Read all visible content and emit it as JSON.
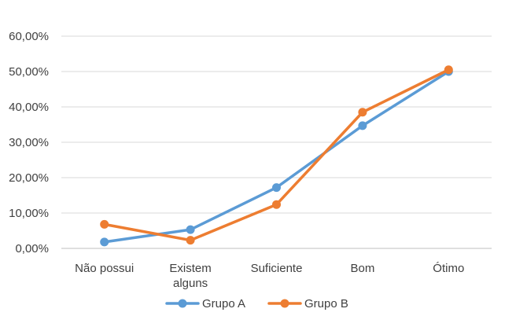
{
  "chart_data": {
    "type": "line",
    "title": "",
    "xlabel": "",
    "ylabel": "",
    "categories": [
      [
        "Não possui"
      ],
      [
        "Existem",
        "alguns"
      ],
      [
        "Suficiente"
      ],
      [
        "Bom"
      ],
      [
        "Ótimo"
      ]
    ],
    "y_ticks": [
      "0,00%",
      "10,00%",
      "20,00%",
      "30,00%",
      "40,00%",
      "50,00%",
      "60,00%"
    ],
    "ylim": [
      0,
      60
    ],
    "grid": true,
    "legend_position": "bottom",
    "series": [
      {
        "name": "Grupo A",
        "color": "#5B9BD5",
        "values": [
          1.8,
          5.3,
          17.2,
          34.7,
          50.0
        ]
      },
      {
        "name": "Grupo B",
        "color": "#ED7D31",
        "values": [
          6.8,
          2.3,
          12.4,
          38.5,
          50.5
        ]
      }
    ]
  }
}
